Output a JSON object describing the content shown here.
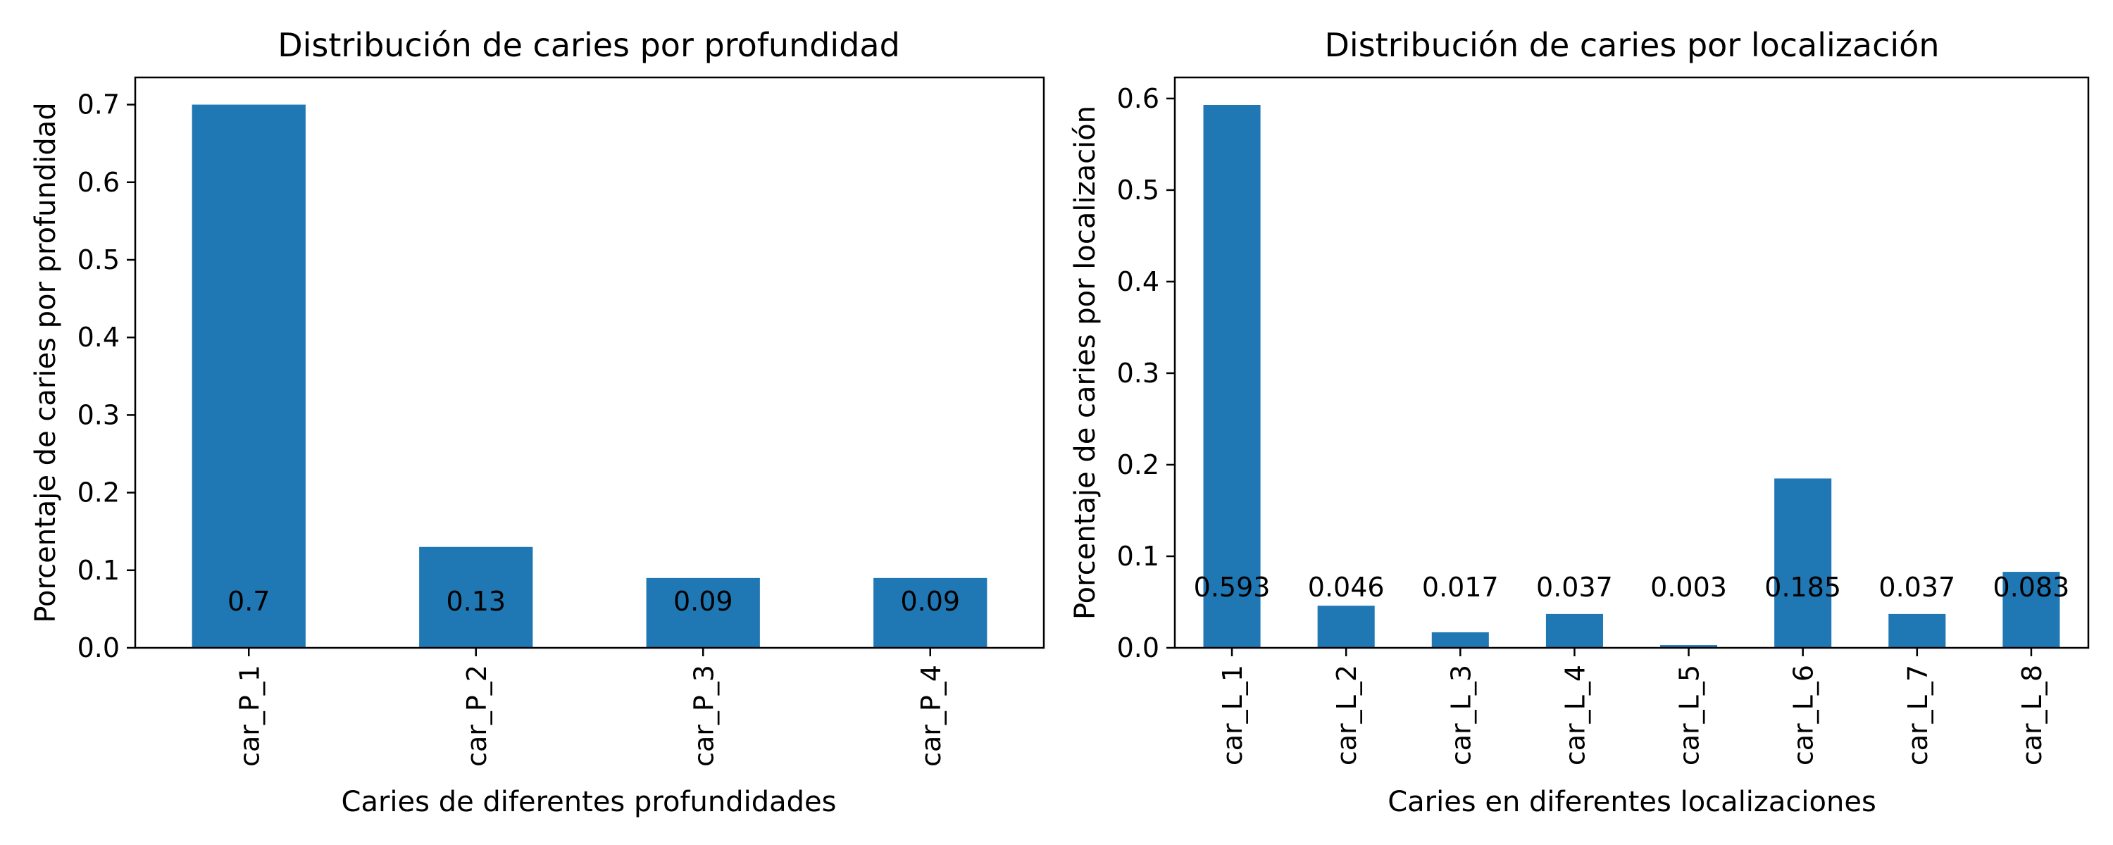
{
  "colors": {
    "bar": "#1f77b4",
    "axis": "#000000"
  },
  "chart_data": [
    {
      "type": "bar",
      "title": "Distribución de caries por profundidad",
      "xlabel": "Caries de diferentes profundidades",
      "ylabel": "Porcentaje de caries por profundidad",
      "categories": [
        "car_P_1",
        "car_P_2",
        "car_P_3",
        "car_P_4"
      ],
      "values": [
        0.7,
        0.13,
        0.09,
        0.09
      ],
      "data_labels": [
        "0.7",
        "0.13",
        "0.09",
        "0.09"
      ],
      "ylim": [
        0,
        0.735
      ],
      "yticks": [
        0.0,
        0.1,
        0.2,
        0.3,
        0.4,
        0.5,
        0.6,
        0.7
      ],
      "ytick_labels": [
        "0.0",
        "0.1",
        "0.2",
        "0.3",
        "0.4",
        "0.5",
        "0.6",
        "0.7"
      ],
      "grid": false
    },
    {
      "type": "bar",
      "title": "Distribución de caries por localización",
      "xlabel": "Caries en diferentes localizaciones",
      "ylabel": "Porcentaje de caries por localización",
      "categories": [
        "car_L_1",
        "car_L_2",
        "car_L_3",
        "car_L_4",
        "car_L_5",
        "car_L_6",
        "car_L_7",
        "car_L_8"
      ],
      "values": [
        0.593,
        0.046,
        0.017,
        0.037,
        0.003,
        0.185,
        0.037,
        0.083
      ],
      "data_labels": [
        "0.593",
        "0.046",
        "0.017",
        "0.037",
        "0.003",
        "0.185",
        "0.037",
        "0.083"
      ],
      "ylim": [
        0,
        0.623
      ],
      "yticks": [
        0.0,
        0.1,
        0.2,
        0.3,
        0.4,
        0.5,
        0.6
      ],
      "ytick_labels": [
        "0.0",
        "0.1",
        "0.2",
        "0.3",
        "0.4",
        "0.5",
        "0.6"
      ],
      "grid": false
    }
  ]
}
